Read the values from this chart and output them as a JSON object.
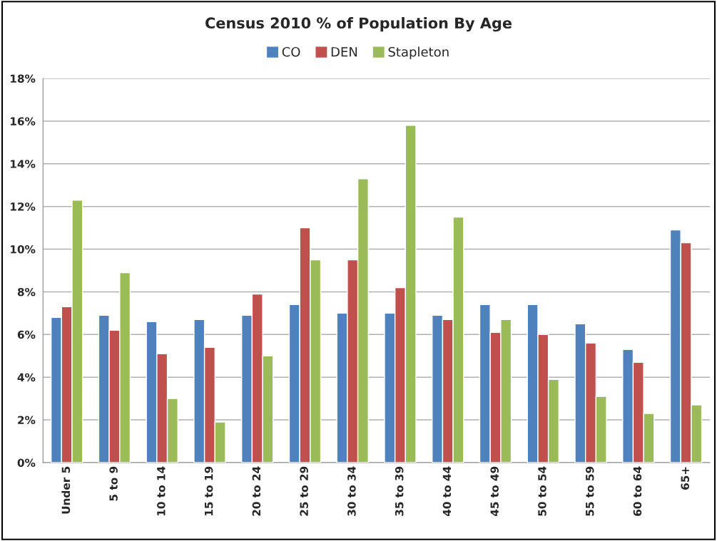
{
  "chart_data": {
    "type": "bar",
    "title": "Census 2010 % of Population By Age",
    "categories": [
      "Under 5",
      "5 to 9",
      "10 to 14",
      "15 to 19",
      "20 to 24",
      "25 to 29",
      "30 to 34",
      "35 to 39",
      "40 to 44",
      "45 to 49",
      "50 to 54",
      "55 to 59",
      "60 to 64",
      "65+"
    ],
    "series": [
      {
        "name": "CO",
        "color": "#4f81bd",
        "values": [
          6.8,
          6.9,
          6.6,
          6.7,
          6.9,
          7.4,
          7.0,
          7.0,
          6.9,
          7.4,
          7.4,
          6.5,
          5.3,
          10.9
        ]
      },
      {
        "name": "DEN",
        "color": "#c0504d",
        "values": [
          7.3,
          6.2,
          5.1,
          5.4,
          7.9,
          11.0,
          9.5,
          8.2,
          6.7,
          6.1,
          6.0,
          5.6,
          4.7,
          10.3
        ]
      },
      {
        "name": "Stapleton",
        "color": "#9bbb59",
        "values": [
          12.3,
          8.9,
          3.0,
          1.9,
          5.0,
          9.5,
          13.3,
          15.8,
          11.5,
          6.7,
          3.9,
          3.1,
          2.3,
          2.7
        ]
      }
    ],
    "ylim": [
      0,
      18
    ],
    "yticks": [
      {
        "value": 0,
        "label": "0%"
      },
      {
        "value": 2,
        "label": "2%"
      },
      {
        "value": 4,
        "label": "4%"
      },
      {
        "value": 6,
        "label": "6%"
      },
      {
        "value": 8,
        "label": "8%"
      },
      {
        "value": 10,
        "label": "10%"
      },
      {
        "value": 12,
        "label": "12%"
      },
      {
        "value": 14,
        "label": "14%"
      },
      {
        "value": 16,
        "label": "16%"
      },
      {
        "value": 18,
        "label": "18%"
      }
    ],
    "grid": "y",
    "legend": "top"
  }
}
